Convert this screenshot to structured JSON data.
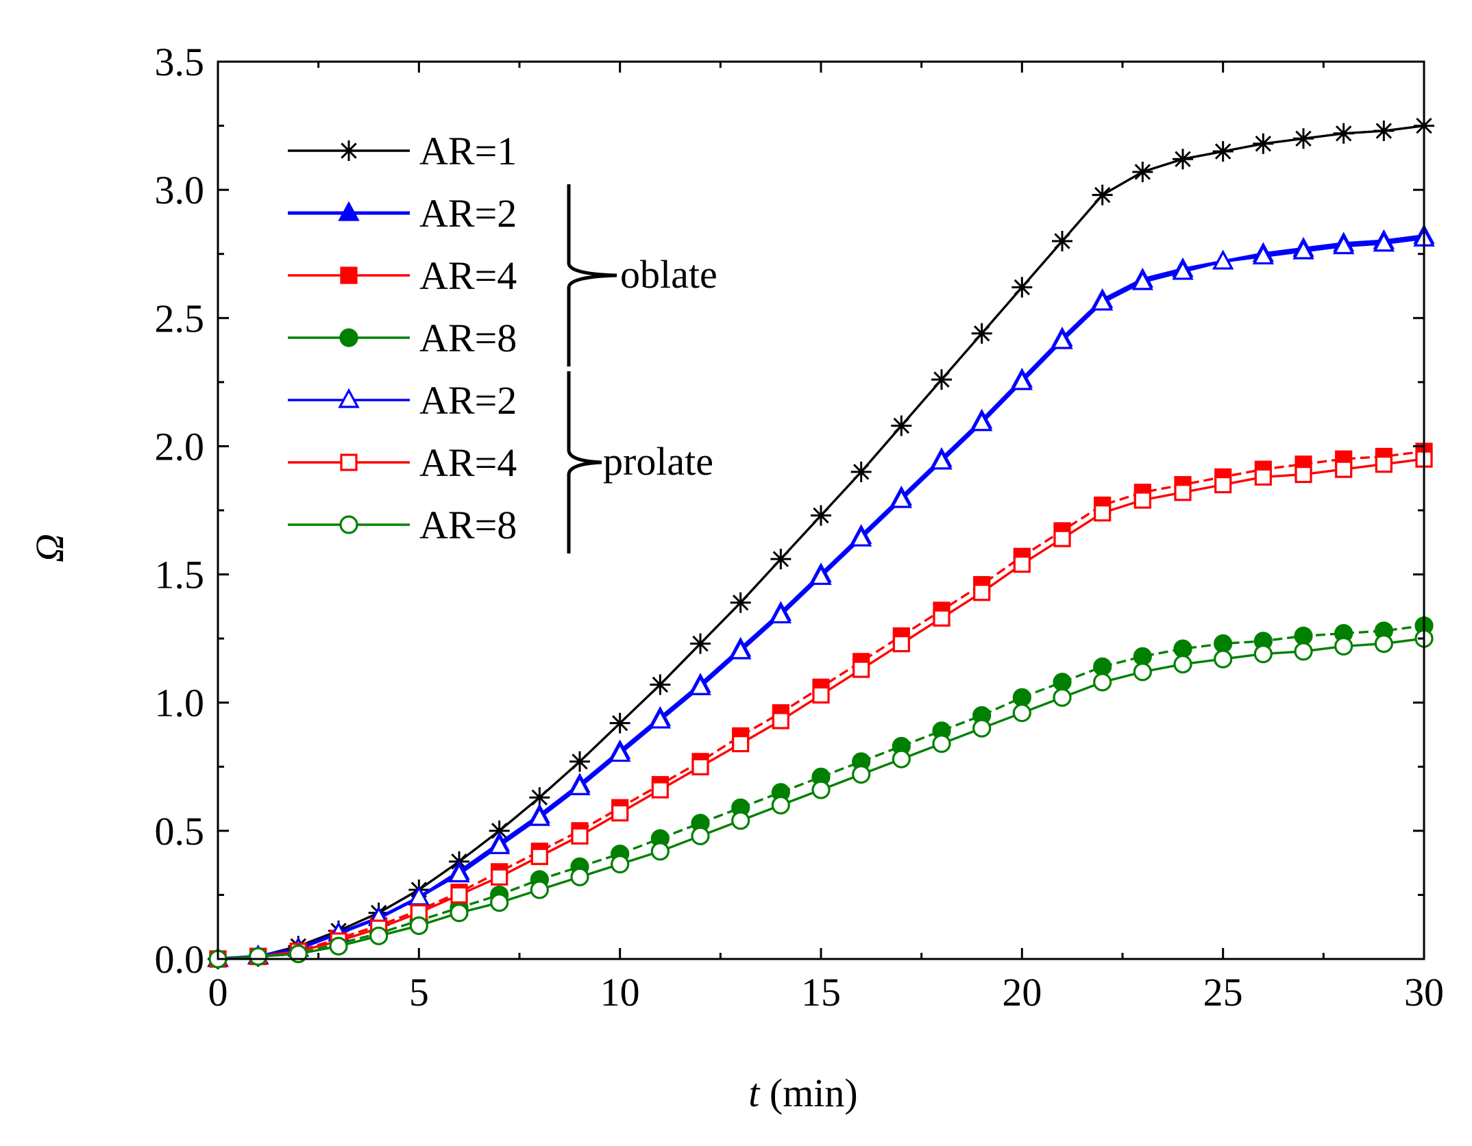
{
  "chart_data": {
    "type": "line",
    "title": "",
    "xlabel_var": "t",
    "xlabel_unit": " (min)",
    "ylabel": "Ω",
    "xlim": [
      0,
      30
    ],
    "ylim": [
      0,
      3.5
    ],
    "xticks": [
      0,
      5,
      10,
      15,
      20,
      25,
      30
    ],
    "yticks": [
      0.0,
      0.5,
      1.0,
      1.5,
      2.0,
      2.5,
      3.0,
      3.5
    ],
    "xtick_labels": [
      "0",
      "5",
      "10",
      "15",
      "20",
      "25",
      "30"
    ],
    "ytick_labels": [
      "0.0",
      "0.5",
      "1.0",
      "1.5",
      "2.0",
      "2.5",
      "3.0",
      "3.5"
    ],
    "grid": false,
    "legend_position": "top-left",
    "legend_groups": [
      {
        "label": "oblate",
        "series_indices": [
          1,
          2,
          3
        ]
      },
      {
        "label": "prolate",
        "series_indices": [
          4,
          5,
          6
        ]
      }
    ],
    "x": [
      0,
      1,
      2,
      3,
      4,
      5,
      6,
      7,
      8,
      9,
      10,
      11,
      12,
      13,
      14,
      15,
      16,
      17,
      18,
      19,
      20,
      21,
      22,
      23,
      24,
      25,
      26,
      27,
      28,
      29,
      30
    ],
    "series": [
      {
        "name": "AR=1",
        "group": "",
        "color": "#000000",
        "marker": "asterisk",
        "filled": false,
        "dashed": false,
        "values": [
          0.0,
          0.01,
          0.05,
          0.11,
          0.18,
          0.27,
          0.38,
          0.5,
          0.63,
          0.77,
          0.92,
          1.07,
          1.23,
          1.39,
          1.56,
          1.73,
          1.9,
          2.08,
          2.26,
          2.44,
          2.62,
          2.8,
          2.98,
          3.07,
          3.12,
          3.15,
          3.18,
          3.2,
          3.22,
          3.23,
          3.25
        ]
      },
      {
        "name": "AR=2",
        "group": "oblate",
        "color": "#0000ff",
        "marker": "triangle",
        "filled": true,
        "dashed": false,
        "values": [
          0.0,
          0.01,
          0.04,
          0.1,
          0.16,
          0.24,
          0.34,
          0.45,
          0.56,
          0.68,
          0.81,
          0.94,
          1.07,
          1.21,
          1.35,
          1.5,
          1.65,
          1.8,
          1.95,
          2.1,
          2.26,
          2.42,
          2.57,
          2.65,
          2.69,
          2.72,
          2.75,
          2.77,
          2.79,
          2.8,
          2.82
        ]
      },
      {
        "name": "AR=4",
        "group": "oblate",
        "color": "#ff0000",
        "marker": "square",
        "filled": true,
        "dashed": true,
        "values": [
          0.0,
          0.01,
          0.03,
          0.08,
          0.13,
          0.19,
          0.26,
          0.34,
          0.42,
          0.5,
          0.59,
          0.68,
          0.77,
          0.87,
          0.96,
          1.06,
          1.16,
          1.26,
          1.36,
          1.46,
          1.57,
          1.67,
          1.77,
          1.82,
          1.85,
          1.88,
          1.91,
          1.93,
          1.95,
          1.96,
          1.98
        ]
      },
      {
        "name": "AR=8",
        "group": "oblate",
        "color": "#008000",
        "marker": "circle",
        "filled": true,
        "dashed": true,
        "values": [
          0.0,
          0.01,
          0.02,
          0.06,
          0.1,
          0.15,
          0.2,
          0.25,
          0.31,
          0.36,
          0.41,
          0.47,
          0.53,
          0.59,
          0.65,
          0.71,
          0.77,
          0.83,
          0.89,
          0.95,
          1.02,
          1.08,
          1.14,
          1.18,
          1.21,
          1.23,
          1.24,
          1.26,
          1.27,
          1.28,
          1.3
        ]
      },
      {
        "name": "AR=2",
        "group": "prolate",
        "color": "#0000ff",
        "marker": "triangle",
        "filled": false,
        "dashed": false,
        "values": [
          0.0,
          0.01,
          0.04,
          0.1,
          0.16,
          0.24,
          0.33,
          0.44,
          0.55,
          0.67,
          0.8,
          0.93,
          1.06,
          1.2,
          1.34,
          1.49,
          1.64,
          1.79,
          1.94,
          2.09,
          2.25,
          2.41,
          2.56,
          2.64,
          2.68,
          2.72,
          2.74,
          2.76,
          2.78,
          2.79,
          2.81
        ]
      },
      {
        "name": "AR=4",
        "group": "prolate",
        "color": "#ff0000",
        "marker": "square",
        "filled": false,
        "dashed": false,
        "values": [
          0.0,
          0.01,
          0.03,
          0.07,
          0.12,
          0.18,
          0.25,
          0.32,
          0.4,
          0.48,
          0.57,
          0.66,
          0.75,
          0.84,
          0.93,
          1.03,
          1.13,
          1.23,
          1.33,
          1.43,
          1.54,
          1.64,
          1.74,
          1.79,
          1.82,
          1.85,
          1.88,
          1.89,
          1.91,
          1.93,
          1.95
        ]
      },
      {
        "name": "AR=8",
        "group": "prolate",
        "color": "#008000",
        "marker": "circle",
        "filled": false,
        "dashed": false,
        "values": [
          0.0,
          0.01,
          0.02,
          0.05,
          0.09,
          0.13,
          0.18,
          0.22,
          0.27,
          0.32,
          0.37,
          0.42,
          0.48,
          0.54,
          0.6,
          0.66,
          0.72,
          0.78,
          0.84,
          0.9,
          0.96,
          1.02,
          1.08,
          1.12,
          1.15,
          1.17,
          1.19,
          1.2,
          1.22,
          1.23,
          1.25
        ]
      }
    ]
  }
}
